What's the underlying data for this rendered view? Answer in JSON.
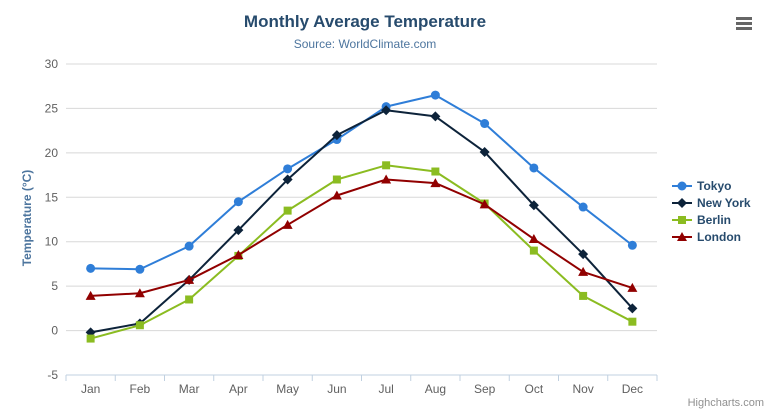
{
  "header": {
    "title": "Monthly Average Temperature",
    "subtitle": "Source: WorldClimate.com"
  },
  "export_menu": {
    "icon": "hamburger-menu-icon"
  },
  "credit": {
    "label": "Highcharts.com"
  },
  "colors": {
    "title": "#274b6d",
    "subtitle": "#4d759e",
    "axis_title": "#4d759e",
    "axis_labels": "#606060",
    "gridline": "#d8d8d8",
    "axis_line": "#c0d0e0",
    "legend_text": "#274b6d",
    "credit_text": "#909090"
  },
  "chart_data": {
    "type": "line",
    "title": "Monthly Average Temperature",
    "subtitle": "Source: WorldClimate.com",
    "xlabel": "",
    "ylabel": "Temperature (°C)",
    "categories": [
      "Jan",
      "Feb",
      "Mar",
      "Apr",
      "May",
      "Jun",
      "Jul",
      "Aug",
      "Sep",
      "Oct",
      "Nov",
      "Dec"
    ],
    "ylim": [
      -5,
      30
    ],
    "ytick_interval": 5,
    "yticks": [
      -5,
      0,
      5,
      10,
      15,
      20,
      25,
      30
    ],
    "grid": true,
    "legend_position": "right",
    "series": [
      {
        "name": "Tokyo",
        "color": "#2f7ed8",
        "marker": "circle",
        "values": [
          7.0,
          6.9,
          9.5,
          14.5,
          18.2,
          21.5,
          25.2,
          26.5,
          23.3,
          18.3,
          13.9,
          9.6
        ]
      },
      {
        "name": "New York",
        "color": "#0d233a",
        "marker": "diamond",
        "values": [
          -0.2,
          0.8,
          5.7,
          11.3,
          17.0,
          22.0,
          24.8,
          24.1,
          20.1,
          14.1,
          8.6,
          2.5
        ]
      },
      {
        "name": "Berlin",
        "color": "#8bbc21",
        "marker": "square",
        "values": [
          -0.9,
          0.6,
          3.5,
          8.4,
          13.5,
          17.0,
          18.6,
          17.9,
          14.3,
          9.0,
          3.9,
          1.0
        ]
      },
      {
        "name": "London",
        "color": "#910000",
        "marker": "triangle",
        "values": [
          3.9,
          4.2,
          5.7,
          8.5,
          11.9,
          15.2,
          17.0,
          16.6,
          14.2,
          10.3,
          6.6,
          4.8
        ]
      }
    ]
  }
}
